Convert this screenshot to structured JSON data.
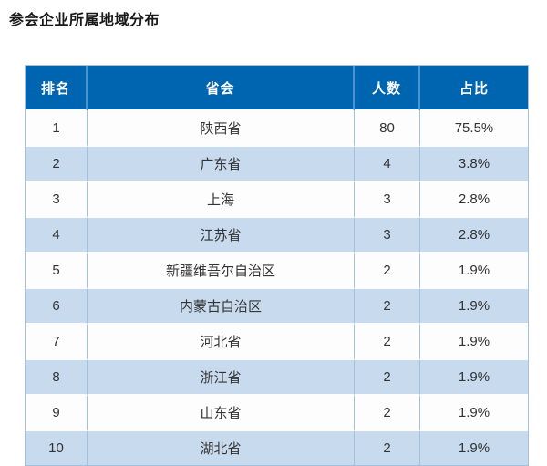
{
  "page": {
    "title": "参会企业所属地域分布"
  },
  "colors": {
    "header_bg": "#0065b0",
    "header_text": "#ffffff",
    "header_divider": "#4f94ca",
    "row_bg": "#fdfdfd",
    "row_alt_bg": "#c7daee",
    "border": "#a3c0dc",
    "body_text": "#333333",
    "title_text": "#1a1a1a"
  },
  "table": {
    "columns": [
      {
        "key": "rank",
        "label": "排名"
      },
      {
        "key": "province",
        "label": "省会"
      },
      {
        "key": "count",
        "label": "人数"
      },
      {
        "key": "percent",
        "label": "占比"
      }
    ],
    "rows": [
      {
        "rank": "1",
        "province": "陕西省",
        "count": "80",
        "percent": "75.5%"
      },
      {
        "rank": "2",
        "province": "广东省",
        "count": "4",
        "percent": "3.8%"
      },
      {
        "rank": "3",
        "province": "上海",
        "count": "3",
        "percent": "2.8%"
      },
      {
        "rank": "4",
        "province": "江苏省",
        "count": "3",
        "percent": "2.8%"
      },
      {
        "rank": "5",
        "province": "新疆维吾尔自治区",
        "count": "2",
        "percent": "1.9%"
      },
      {
        "rank": "6",
        "province": "内蒙古自治区",
        "count": "2",
        "percent": "1.9%"
      },
      {
        "rank": "7",
        "province": "河北省",
        "count": "2",
        "percent": "1.9%"
      },
      {
        "rank": "8",
        "province": "浙江省",
        "count": "2",
        "percent": "1.9%"
      },
      {
        "rank": "9",
        "province": "山东省",
        "count": "2",
        "percent": "1.9%"
      },
      {
        "rank": "10",
        "province": "湖北省",
        "count": "2",
        "percent": "1.9%"
      }
    ]
  },
  "chart_data": {
    "type": "table",
    "title": "参会企业所属地域分布",
    "columns": [
      "排名",
      "省会",
      "人数",
      "占比"
    ],
    "categories": [
      "陕西省",
      "广东省",
      "上海",
      "江苏省",
      "新疆维吾尔自治区",
      "内蒙古自治区",
      "河北省",
      "浙江省",
      "山东省",
      "湖北省"
    ],
    "series": [
      {
        "name": "人数",
        "values": [
          80,
          4,
          3,
          3,
          2,
          2,
          2,
          2,
          2,
          2
        ]
      },
      {
        "name": "占比",
        "values": [
          "75.5%",
          "3.8%",
          "2.8%",
          "2.8%",
          "1.9%",
          "1.9%",
          "1.9%",
          "1.9%",
          "1.9%",
          "1.9%"
        ]
      }
    ]
  }
}
